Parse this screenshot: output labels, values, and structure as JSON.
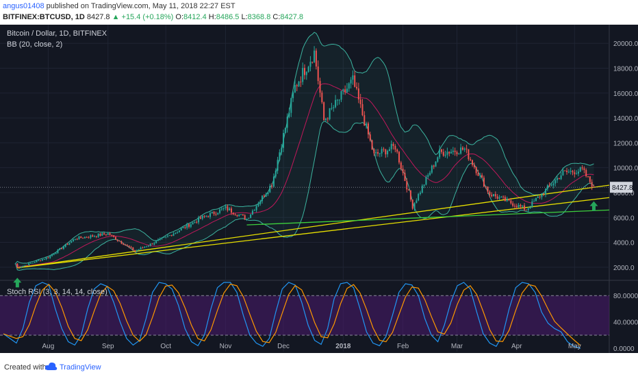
{
  "header": {
    "user": "angus01408",
    "published": "published on TradingView.com, May 11, 2018 22:27 EST",
    "symbol": "BITFINEX:BTCUSD, 1D",
    "last": "8427.8",
    "change": "+15.4 (+0.18%)",
    "o_label": "O:",
    "open": "8412.4",
    "h_label": "H:",
    "high": "8486.5",
    "l_label": "L:",
    "low": "8368.8",
    "c_label": "C:",
    "close": "8427.8"
  },
  "legend": {
    "title": "Bitcoin / Dollar, 1D, BITFINEX",
    "bb": "BB (20, close, 2)",
    "stoch": "Stoch RSI (3, 3, 14, 14, close)"
  },
  "price_tag": "8427.8",
  "footer": {
    "created": "Created with",
    "brand": "TradingView"
  },
  "colors": {
    "background": "#131722",
    "up": "#26a69a",
    "down": "#ef5350",
    "bb_band": "#3cb4a0",
    "bb_basis": "#c2185b",
    "trend_yellow": "#e8e000",
    "trend_green": "#3dd13d",
    "stoch_k": "#2196f3",
    "stoch_d": "#ff9800",
    "stoch_fill": "#4a1a6e",
    "arrow": "#26a65b"
  },
  "chart_data": [
    {
      "type": "candlestick",
      "title": "Bitcoin / Dollar, 1D, BITFINEX",
      "x_tick_labels": [
        "Aug",
        "Sep",
        "Oct",
        "Nov",
        "Dec",
        "2018",
        "Feb",
        "Mar",
        "Apr",
        "May"
      ],
      "y_tick_labels": [
        "2000.0",
        "4000.0",
        "6000.0",
        "8000.0",
        "10000.0",
        "12000.0",
        "14000.0",
        "16000.0",
        "18000.0",
        "20000.0"
      ],
      "ylim": [
        1000,
        21500
      ],
      "close_path_approx": [
        {
          "date": "2017-07-15",
          "close": 2300
        },
        {
          "date": "2017-07-16",
          "close": 1950
        },
        {
          "date": "2017-08-01",
          "close": 2800
        },
        {
          "date": "2017-08-15",
          "close": 4300
        },
        {
          "date": "2017-09-01",
          "close": 4700
        },
        {
          "date": "2017-09-15",
          "close": 3300
        },
        {
          "date": "2017-10-01",
          "close": 4400
        },
        {
          "date": "2017-10-20",
          "close": 6000
        },
        {
          "date": "2017-11-01",
          "close": 6750
        },
        {
          "date": "2017-11-12",
          "close": 5900
        },
        {
          "date": "2017-11-25",
          "close": 8700
        },
        {
          "date": "2017-12-07",
          "close": 16500
        },
        {
          "date": "2017-12-17",
          "close": 19300
        },
        {
          "date": "2017-12-22",
          "close": 13800
        },
        {
          "date": "2018-01-06",
          "close": 17000
        },
        {
          "date": "2018-01-17",
          "close": 11000
        },
        {
          "date": "2018-01-28",
          "close": 11700
        },
        {
          "date": "2018-02-06",
          "close": 6900
        },
        {
          "date": "2018-02-20",
          "close": 11200
        },
        {
          "date": "2018-03-05",
          "close": 11500
        },
        {
          "date": "2018-03-18",
          "close": 7900
        },
        {
          "date": "2018-04-06",
          "close": 6650
        },
        {
          "date": "2018-04-25",
          "close": 9600
        },
        {
          "date": "2018-05-05",
          "close": 9800
        },
        {
          "date": "2018-05-11",
          "close": 8427.8
        }
      ],
      "overlays": [
        "Bollinger Bands (20, close, 2)",
        "ascending yellow trendlines",
        "green support line"
      ],
      "annotations": [
        "green up arrow near Jul 16 low",
        "green up arrow near May 11"
      ]
    },
    {
      "type": "line",
      "title": "Stoch RSI (3, 3, 14, 14, close)",
      "y_tick_labels": [
        "80.0000",
        "40.0000",
        "0.0000"
      ],
      "ylim": [
        -5,
        100
      ],
      "bands": [
        20,
        80
      ],
      "series": [
        {
          "name": "",
          "values": [
            22,
            15,
            8,
            30,
            70,
            95,
            100,
            96,
            60,
            30,
            10,
            5,
            20,
            60,
            90,
            98,
            94,
            70,
            40,
            15,
            5,
            12,
            45,
            85,
            100,
            98,
            90,
            65,
            30,
            10,
            4,
            20,
            60,
            92,
            100,
            100,
            85,
            50,
            20,
            8,
            3,
            15,
            55,
            90,
            100,
            96,
            70,
            35,
            12,
            6,
            30,
            75,
            98,
            100,
            92,
            60,
            25,
            8,
            4,
            18,
            50,
            85,
            98,
            96,
            80,
            45,
            20,
            10,
            35,
            70,
            95,
            100,
            90,
            55,
            22,
            8,
            3,
            20,
            60,
            92,
            100,
            98,
            85,
            55,
            38,
            30,
            25,
            10,
            3,
            0
          ]
        }
      ]
    }
  ]
}
